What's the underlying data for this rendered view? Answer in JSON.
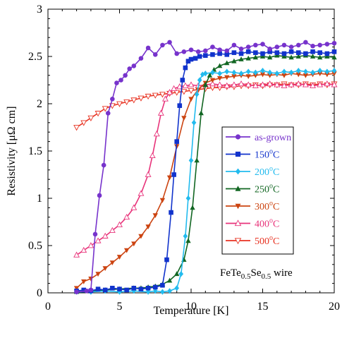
{
  "chart_data": {
    "type": "line",
    "xlabel": "Temperature [K]",
    "ylabel": "Resistivity [μΩ cm]",
    "xlim": [
      0,
      20
    ],
    "ylim": [
      0,
      3
    ],
    "xticks": [
      0,
      5,
      10,
      15,
      20
    ],
    "yticks": [
      0,
      0.5,
      1,
      1.5,
      2,
      2.5,
      3
    ],
    "xtick_labels": [
      "0",
      "5",
      "10",
      "15",
      "20"
    ],
    "ytick_labels": [
      "0",
      "0.5",
      "1",
      "1.5",
      "2",
      "2.5",
      "3"
    ],
    "grid": false,
    "legend_position": "center-right",
    "annotation": {
      "base": "FeTe",
      "sub1": "0.5",
      "mid": "Se",
      "sub2": "0.5",
      "tail": " wire"
    },
    "series": [
      {
        "name": "as-grown",
        "name_base": "as-grown",
        "name_sup": "",
        "name_tail": "",
        "color": "#7733cc",
        "marker": "circle",
        "x": [
          2.0,
          2.7,
          3.0,
          3.3,
          3.6,
          3.9,
          4.2,
          4.5,
          4.8,
          5.1,
          5.4,
          5.7,
          6.0,
          6.5,
          7.0,
          7.5,
          8.0,
          8.5,
          9.0,
          9.5,
          10.0,
          10.5,
          11.0,
          11.5,
          12.0,
          12.5,
          13.0,
          13.5,
          14.0,
          14.5,
          15.0,
          15.5,
          16.0,
          16.5,
          17.0,
          17.5,
          18.0,
          18.5,
          19.0,
          19.5,
          20.0
        ],
        "y": [
          0.01,
          0.02,
          0.03,
          0.62,
          1.03,
          1.35,
          1.9,
          2.05,
          2.22,
          2.25,
          2.3,
          2.37,
          2.4,
          2.48,
          2.59,
          2.52,
          2.62,
          2.65,
          2.53,
          2.55,
          2.57,
          2.55,
          2.56,
          2.6,
          2.57,
          2.56,
          2.62,
          2.58,
          2.6,
          2.62,
          2.63,
          2.58,
          2.6,
          2.62,
          2.6,
          2.62,
          2.65,
          2.61,
          2.62,
          2.63,
          2.64
        ]
      },
      {
        "name": "150°C",
        "name_base": "150",
        "name_sup": "o",
        "name_tail": "C",
        "color": "#1133cc",
        "marker": "square",
        "x": [
          2.0,
          2.5,
          3.0,
          3.5,
          4.0,
          4.5,
          5.0,
          5.5,
          6.0,
          6.5,
          7.0,
          7.5,
          8.0,
          8.3,
          8.6,
          8.8,
          9.0,
          9.2,
          9.4,
          9.6,
          9.8,
          10.0,
          10.3,
          10.6,
          11.0,
          11.5,
          12.0,
          12.5,
          13.0,
          13.5,
          14.0,
          14.5,
          15.0,
          15.5,
          16.0,
          16.5,
          17.0,
          17.5,
          18.0,
          18.5,
          19.0,
          19.5,
          20.0
        ],
        "y": [
          0.02,
          0.03,
          0.02,
          0.04,
          0.03,
          0.05,
          0.04,
          0.03,
          0.05,
          0.04,
          0.05,
          0.06,
          0.08,
          0.35,
          0.85,
          1.25,
          1.6,
          1.98,
          2.25,
          2.38,
          2.45,
          2.47,
          2.48,
          2.5,
          2.51,
          2.52,
          2.53,
          2.52,
          2.54,
          2.53,
          2.55,
          2.54,
          2.53,
          2.55,
          2.54,
          2.53,
          2.55,
          2.54,
          2.53,
          2.55,
          2.54,
          2.53,
          2.55
        ]
      },
      {
        "name": "200°C",
        "name_base": "200",
        "name_sup": "o",
        "name_tail": "C",
        "color": "#22bbee",
        "marker": "diamond",
        "x": [
          2.0,
          3.0,
          4.0,
          5.0,
          6.0,
          7.0,
          7.5,
          8.0,
          8.5,
          9.0,
          9.3,
          9.6,
          9.8,
          10.0,
          10.2,
          10.4,
          10.6,
          10.8,
          11.0,
          11.5,
          12.0,
          12.5,
          13.0,
          13.5,
          14.0,
          14.5,
          15.0,
          15.5,
          16.0,
          16.5,
          17.0,
          17.5,
          18.0,
          18.5,
          19.0,
          19.5,
          20.0
        ],
        "y": [
          0.01,
          0.01,
          0.02,
          0.01,
          0.02,
          0.01,
          0.02,
          0.01,
          0.02,
          0.05,
          0.2,
          0.6,
          1.0,
          1.4,
          1.8,
          2.1,
          2.25,
          2.31,
          2.32,
          2.33,
          2.32,
          2.34,
          2.33,
          2.32,
          2.34,
          2.33,
          2.35,
          2.33,
          2.32,
          2.34,
          2.33,
          2.35,
          2.34,
          2.33,
          2.35,
          2.34,
          2.35
        ]
      },
      {
        "name": "250°C",
        "name_base": "250",
        "name_sup": "o",
        "name_tail": "C",
        "color": "#116622",
        "marker": "triangle-up",
        "x": [
          2.0,
          3.0,
          4.0,
          5.0,
          6.0,
          6.5,
          7.0,
          7.5,
          8.0,
          8.5,
          9.0,
          9.5,
          9.8,
          10.1,
          10.4,
          10.7,
          11.0,
          11.3,
          11.6,
          12.0,
          12.5,
          13.0,
          13.5,
          14.0,
          14.5,
          15.0,
          15.5,
          16.0,
          16.5,
          17.0,
          17.5,
          18.0,
          18.5,
          19.0,
          19.5,
          20.0
        ],
        "y": [
          0.01,
          0.02,
          0.03,
          0.04,
          0.05,
          0.05,
          0.06,
          0.07,
          0.09,
          0.13,
          0.2,
          0.35,
          0.55,
          0.9,
          1.4,
          1.9,
          2.2,
          2.3,
          2.36,
          2.4,
          2.43,
          2.45,
          2.47,
          2.48,
          2.49,
          2.5,
          2.49,
          2.51,
          2.5,
          2.49,
          2.5,
          2.51,
          2.5,
          2.49,
          2.5,
          2.49
        ]
      },
      {
        "name": "300°C",
        "name_base": "300",
        "name_sup": "o",
        "name_tail": "C",
        "color": "#cc4411",
        "marker": "triangle-down",
        "x": [
          2.0,
          2.5,
          3.0,
          3.5,
          4.0,
          4.5,
          5.0,
          5.5,
          6.0,
          6.5,
          7.0,
          7.5,
          8.0,
          8.5,
          9.0,
          9.5,
          10.0,
          10.5,
          11.0,
          11.5,
          12.0,
          12.5,
          13.0,
          13.5,
          14.0,
          14.5,
          15.0,
          15.5,
          16.0,
          16.5,
          17.0,
          17.5,
          18.0,
          18.5,
          19.0,
          19.5,
          20.0
        ],
        "y": [
          0.05,
          0.12,
          0.15,
          0.2,
          0.26,
          0.32,
          0.38,
          0.45,
          0.52,
          0.6,
          0.7,
          0.82,
          0.98,
          1.22,
          1.55,
          1.85,
          2.05,
          2.15,
          2.22,
          2.25,
          2.27,
          2.28,
          2.29,
          2.3,
          2.29,
          2.3,
          2.31,
          2.3,
          2.31,
          2.3,
          2.32,
          2.31,
          2.3,
          2.31,
          2.32,
          2.31,
          2.32
        ]
      },
      {
        "name": "400°C",
        "name_base": "400",
        "name_sup": "o",
        "name_tail": "C",
        "color": "#e8337a",
        "marker": "triangle-up-open",
        "x": [
          2.0,
          2.5,
          3.0,
          3.5,
          4.0,
          4.5,
          5.0,
          5.5,
          6.0,
          6.5,
          7.0,
          7.3,
          7.6,
          7.9,
          8.2,
          8.5,
          8.8,
          9.2,
          9.6,
          10.0,
          10.5,
          11.0,
          11.5,
          12.0,
          12.5,
          13.0,
          13.5,
          14.0,
          14.5,
          15.0,
          15.5,
          16.0,
          16.5,
          17.0,
          17.5,
          18.0,
          18.5,
          19.0,
          19.5,
          20.0
        ],
        "y": [
          0.4,
          0.45,
          0.5,
          0.55,
          0.6,
          0.66,
          0.72,
          0.8,
          0.9,
          1.05,
          1.25,
          1.45,
          1.68,
          1.9,
          2.05,
          2.12,
          2.16,
          2.18,
          2.19,
          2.2,
          2.19,
          2.2,
          2.21,
          2.2,
          2.19,
          2.2,
          2.21,
          2.2,
          2.19,
          2.2,
          2.21,
          2.2,
          2.19,
          2.2,
          2.21,
          2.2,
          2.19,
          2.2,
          2.21,
          2.2
        ]
      },
      {
        "name": "500°C",
        "name_base": "500",
        "name_sup": "o",
        "name_tail": "C",
        "color": "#e83322",
        "marker": "triangle-down-open",
        "x": [
          2.0,
          2.5,
          3.0,
          3.5,
          4.0,
          4.5,
          5.0,
          5.5,
          6.0,
          6.5,
          7.0,
          7.5,
          8.0,
          8.5,
          9.0,
          9.5,
          10.0,
          10.5,
          11.0,
          11.5,
          12.0,
          12.5,
          13.0,
          13.5,
          14.0,
          14.5,
          15.0,
          15.5,
          16.0,
          16.5,
          17.0,
          17.5,
          18.0,
          18.5,
          19.0,
          19.5,
          20.0
        ],
        "y": [
          1.75,
          1.8,
          1.85,
          1.9,
          1.95,
          1.98,
          2.0,
          2.02,
          2.04,
          2.06,
          2.08,
          2.09,
          2.1,
          2.11,
          2.12,
          2.13,
          2.14,
          2.15,
          2.16,
          2.17,
          2.17,
          2.18,
          2.18,
          2.19,
          2.19,
          2.2,
          2.19,
          2.2,
          2.2,
          2.21,
          2.2,
          2.2,
          2.21,
          2.2,
          2.21,
          2.2,
          2.21
        ]
      }
    ]
  }
}
